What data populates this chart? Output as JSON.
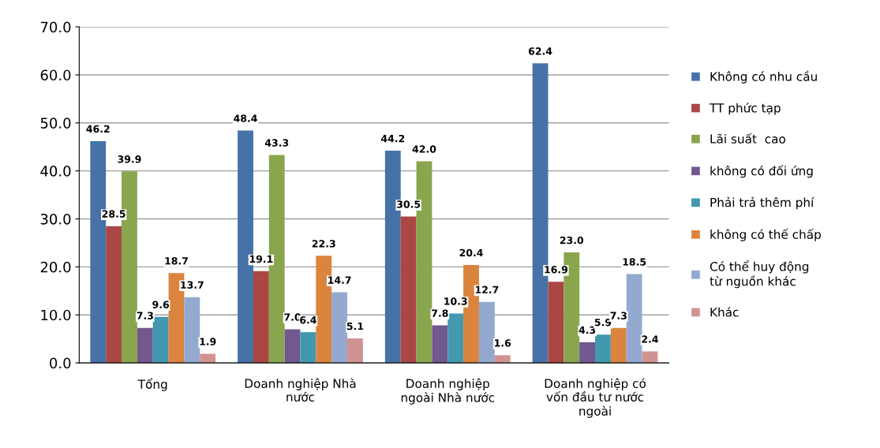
{
  "chart_data": {
    "type": "bar",
    "categories": [
      "Tổng",
      "Doanh nghiệp Nhà\nnước",
      "Doanh nghiệp\nngoài Nhà nước",
      "Doanh nghiệp có\nvốn đầu tư nước\nngoài"
    ],
    "series": [
      {
        "name": "Không có nhu cầu",
        "color": "#4672a8",
        "values": [
          46.2,
          48.4,
          44.2,
          62.4
        ],
        "value_labels": [
          "46.2",
          "48.4",
          "44.2",
          "62.4"
        ]
      },
      {
        "name": "TT phức tạp",
        "color": "#aa4744",
        "values": [
          28.5,
          19.1,
          30.5,
          16.9
        ],
        "value_labels": [
          "28.5",
          "19.1",
          "30.5",
          "16.9"
        ]
      },
      {
        "name": "Lãi suất  cao",
        "color": "#89a54e",
        "values": [
          39.9,
          43.3,
          42.0,
          23.0
        ],
        "value_labels": [
          "39.9",
          "43.3",
          "42.0",
          "23.0"
        ]
      },
      {
        "name": "không có đối ứng",
        "color": "#71588f",
        "values": [
          7.3,
          7.0,
          7.8,
          4.3
        ],
        "value_labels": [
          "7.3",
          "7.0",
          "7.8",
          "4.3"
        ]
      },
      {
        "name": "Phải trả thêm phí",
        "color": "#4198af",
        "values": [
          9.6,
          6.4,
          10.3,
          5.9
        ],
        "value_labels": [
          "9.6",
          "6.4",
          "10.3",
          "5.9"
        ]
      },
      {
        "name": "không có thế chấp",
        "color": "#db843d",
        "values": [
          18.7,
          22.3,
          20.4,
          7.3
        ],
        "value_labels": [
          "18.7",
          "22.3",
          "20.4",
          "7.3"
        ]
      },
      {
        "name": "Có thể huy động\ntừ nguồn khác",
        "color": "#93a9cf",
        "values": [
          13.7,
          14.7,
          12.7,
          18.5
        ],
        "value_labels": [
          "13.7",
          "14.7",
          "12.7",
          "18.5"
        ]
      },
      {
        "name": "Khác",
        "color": "#d19392",
        "values": [
          1.9,
          5.1,
          1.6,
          2.4
        ],
        "value_labels": [
          "1.9",
          "5.1",
          "1.6",
          "2.4"
        ]
      }
    ],
    "ylim": [
      0,
      70
    ],
    "yticks": [
      {
        "value": 0,
        "label": "0.0"
      },
      {
        "value": 10,
        "label": "10.0"
      },
      {
        "value": 20,
        "label": "20.0"
      },
      {
        "value": 30,
        "label": "30.0"
      },
      {
        "value": 40,
        "label": "40.0"
      },
      {
        "value": 50,
        "label": "50.0"
      },
      {
        "value": 60,
        "label": "60.0"
      },
      {
        "value": 70,
        "label": "70.0"
      }
    ],
    "grid": "y",
    "legend": "right"
  }
}
